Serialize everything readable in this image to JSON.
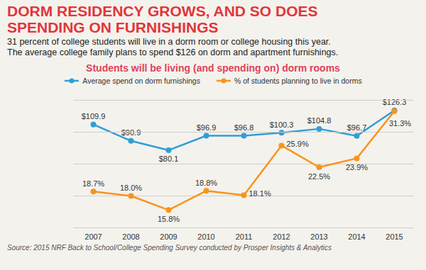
{
  "headline": "DORM RESIDENCY GROWS, AND SO DOES SPENDING ON FURNISHINGS",
  "subtitle": [
    "31 percent of college students will live in a dorm room or college housing this year.",
    "The average college family plans to spend $126 on dorm and apartment furnishings."
  ],
  "source": "Source: 2015 NRF Back to School/College Spending Survey conducted by Prosper Insights & Analytics",
  "chart_data": {
    "type": "line",
    "title": "Students will be living (and spending on) dorm rooms",
    "categories": [
      "2007",
      "2008",
      "2009",
      "2010",
      "2011",
      "2012",
      "2013",
      "2014",
      "2015"
    ],
    "series": [
      {
        "name": "Average spend on dorm furnishings",
        "color": "#2e9fd8",
        "marker": "circle",
        "values": [
          109.9,
          90.9,
          80.1,
          96.9,
          96.8,
          100.3,
          104.8,
          96.7,
          126.3
        ],
        "value_labels": [
          "$109.9",
          "$90.9",
          "$80.1",
          "$96.9",
          "$96.8",
          "$100.3",
          "$104.8",
          "$96.7",
          "$126.3"
        ]
      },
      {
        "name": "% of students planning to live in dorms",
        "color": "#f7941d",
        "marker": "circle",
        "axis": "y2",
        "values": [
          18.7,
          18.0,
          15.8,
          18.8,
          18.1,
          25.9,
          22.5,
          23.9,
          31.3
        ],
        "value_labels": [
          "18.7%",
          "18.0%",
          "15.8%",
          "18.8%",
          "18.1%",
          "25.9%",
          "22.5%",
          "23.9%",
          "31.3%"
        ]
      }
    ],
    "ylim": [
      -10,
      138
    ],
    "yticks": [
      -10,
      27,
      64,
      101,
      138
    ],
    "y2lim": [
      13,
      33
    ],
    "y2ticks": [
      13,
      18,
      23,
      28,
      33
    ],
    "grid": true,
    "legend": "top",
    "data_labels": true,
    "tick_labels": "x"
  }
}
